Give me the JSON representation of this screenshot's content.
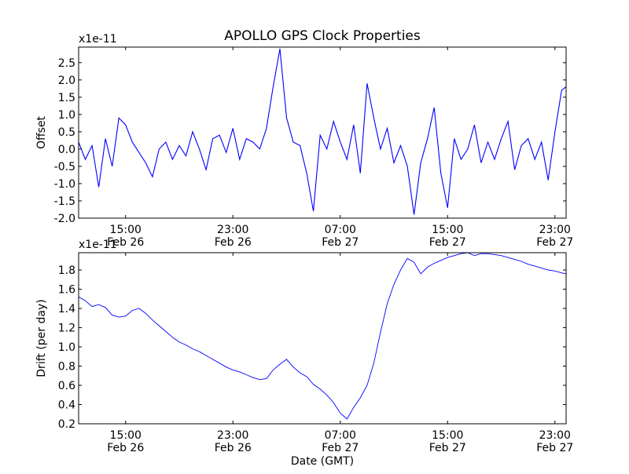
{
  "figure": {
    "title": "APOLLO GPS Clock Properties",
    "xlabel": "Date (GMT)"
  },
  "chart_data": [
    {
      "type": "line",
      "title": "APOLLO GPS Clock Properties",
      "ylabel": "Offset",
      "scale_note": "x1e-11",
      "xlim": [
        "2012-02-26T11:30:00",
        "2012-02-27T23:50:00"
      ],
      "ylim": [
        -2.0,
        2.95
      ],
      "yticks": [
        "-2.0",
        "-1.5",
        "-1.0",
        "-0.5",
        "0.0",
        "0.5",
        "1.0",
        "1.5",
        "2.0",
        "2.5"
      ],
      "ytick_values": [
        -2.0,
        -1.5,
        -1.0,
        -0.5,
        0.0,
        0.5,
        1.0,
        1.5,
        2.0,
        2.5
      ],
      "xticks": [
        {
          "time": "2012-02-26T15:00:00",
          "line1": "15:00",
          "line2": "Feb 26"
        },
        {
          "time": "2012-02-26T23:00:00",
          "line1": "23:00",
          "line2": "Feb 26"
        },
        {
          "time": "2012-02-27T07:00:00",
          "line1": "07:00",
          "line2": "Feb 27"
        },
        {
          "time": "2012-02-27T15:00:00",
          "line1": "15:00",
          "line2": "Feb 27"
        },
        {
          "time": "2012-02-27T23:00:00",
          "line1": "23:00",
          "line2": "Feb 27"
        }
      ],
      "color": "#0000ff",
      "grid": false,
      "series": [
        {
          "x": [
            "2012-02-26T11:30",
            "2012-02-26T12:00",
            "2012-02-26T12:30",
            "2012-02-26T13:00",
            "2012-02-26T13:30",
            "2012-02-26T14:00",
            "2012-02-26T14:30",
            "2012-02-26T15:00",
            "2012-02-26T15:30",
            "2012-02-26T16:00",
            "2012-02-26T16:30",
            "2012-02-26T17:00",
            "2012-02-26T17:30",
            "2012-02-26T18:00",
            "2012-02-26T18:30",
            "2012-02-26T19:00",
            "2012-02-26T19:30",
            "2012-02-26T20:00",
            "2012-02-26T20:30",
            "2012-02-26T21:00",
            "2012-02-26T21:30",
            "2012-02-26T22:00",
            "2012-02-26T22:30",
            "2012-02-26T23:00",
            "2012-02-26T23:30",
            "2012-02-27T00:00",
            "2012-02-27T00:30",
            "2012-02-27T01:00",
            "2012-02-27T01:30",
            "2012-02-27T02:00",
            "2012-02-27T02:30",
            "2012-02-27T03:00",
            "2012-02-27T03:30",
            "2012-02-27T04:00",
            "2012-02-27T04:30",
            "2012-02-27T05:00",
            "2012-02-27T05:30",
            "2012-02-27T06:00",
            "2012-02-27T06:30",
            "2012-02-27T07:00",
            "2012-02-27T07:30",
            "2012-02-27T08:00",
            "2012-02-27T08:30",
            "2012-02-27T09:00",
            "2012-02-27T09:30",
            "2012-02-27T10:00",
            "2012-02-27T10:30",
            "2012-02-27T11:00",
            "2012-02-27T11:30",
            "2012-02-27T12:00",
            "2012-02-27T12:30",
            "2012-02-27T13:00",
            "2012-02-27T13:30",
            "2012-02-27T14:00",
            "2012-02-27T14:30",
            "2012-02-27T15:00",
            "2012-02-27T15:30",
            "2012-02-27T16:00",
            "2012-02-27T16:30",
            "2012-02-27T17:00",
            "2012-02-27T17:30",
            "2012-02-27T18:00",
            "2012-02-27T18:30",
            "2012-02-27T19:00",
            "2012-02-27T19:30",
            "2012-02-27T20:00",
            "2012-02-27T20:30",
            "2012-02-27T21:00",
            "2012-02-27T21:30",
            "2012-02-27T22:00",
            "2012-02-27T22:30",
            "2012-02-27T23:00",
            "2012-02-27T23:30",
            "2012-02-27T23:50"
          ],
          "y": [
            0.2,
            -0.3,
            0.1,
            -1.1,
            0.3,
            -0.5,
            0.9,
            0.7,
            0.2,
            -0.1,
            -0.4,
            -0.8,
            0.0,
            0.2,
            -0.3,
            0.1,
            -0.2,
            0.5,
            0.0,
            -0.6,
            0.3,
            0.4,
            -0.1,
            0.6,
            -0.3,
            0.3,
            0.2,
            0.0,
            0.6,
            1.8,
            2.9,
            0.9,
            0.2,
            0.1,
            -0.7,
            -1.8,
            0.4,
            0.0,
            0.8,
            0.2,
            -0.3,
            0.7,
            -0.7,
            1.9,
            0.9,
            0.0,
            0.6,
            -0.4,
            0.1,
            -0.5,
            -1.9,
            -0.4,
            0.3,
            1.2,
            -0.7,
            -1.7,
            0.3,
            -0.3,
            0.0,
            0.7,
            -0.4,
            0.2,
            -0.3,
            0.3,
            0.8,
            -0.6,
            0.1,
            0.3,
            -0.3,
            0.2,
            -0.9,
            0.5,
            1.7,
            1.8
          ]
        }
      ]
    },
    {
      "type": "line",
      "ylabel": "Drift (per day)",
      "xlabel": "Date (GMT)",
      "scale_note": "x1e-11",
      "xlim": [
        "2012-02-26T11:30:00",
        "2012-02-27T23:50:00"
      ],
      "ylim": [
        0.2,
        1.98
      ],
      "yticks": [
        "0.2",
        "0.4",
        "0.6",
        "0.8",
        "1.0",
        "1.2",
        "1.4",
        "1.6",
        "1.8"
      ],
      "ytick_values": [
        0.2,
        0.4,
        0.6,
        0.8,
        1.0,
        1.2,
        1.4,
        1.6,
        1.8
      ],
      "xticks": [
        {
          "time": "2012-02-26T15:00:00",
          "line1": "15:00",
          "line2": "Feb 26"
        },
        {
          "time": "2012-02-26T23:00:00",
          "line1": "23:00",
          "line2": "Feb 26"
        },
        {
          "time": "2012-02-27T07:00:00",
          "line1": "07:00",
          "line2": "Feb 27"
        },
        {
          "time": "2012-02-27T15:00:00",
          "line1": "15:00",
          "line2": "Feb 27"
        },
        {
          "time": "2012-02-27T23:00:00",
          "line1": "23:00",
          "line2": "Feb 27"
        }
      ],
      "color": "#0000ff",
      "grid": false,
      "series": [
        {
          "x": [
            "2012-02-26T11:30",
            "2012-02-26T12:00",
            "2012-02-26T12:30",
            "2012-02-26T13:00",
            "2012-02-26T13:30",
            "2012-02-26T14:00",
            "2012-02-26T14:30",
            "2012-02-26T15:00",
            "2012-02-26T15:30",
            "2012-02-26T16:00",
            "2012-02-26T16:30",
            "2012-02-26T17:00",
            "2012-02-26T17:30",
            "2012-02-26T18:00",
            "2012-02-26T18:30",
            "2012-02-26T19:00",
            "2012-02-26T19:30",
            "2012-02-26T20:00",
            "2012-02-26T20:30",
            "2012-02-26T21:00",
            "2012-02-26T21:30",
            "2012-02-26T22:00",
            "2012-02-26T22:30",
            "2012-02-26T23:00",
            "2012-02-26T23:30",
            "2012-02-27T00:00",
            "2012-02-27T00:30",
            "2012-02-27T01:00",
            "2012-02-27T01:30",
            "2012-02-27T02:00",
            "2012-02-27T02:30",
            "2012-02-27T03:00",
            "2012-02-27T03:30",
            "2012-02-27T04:00",
            "2012-02-27T04:30",
            "2012-02-27T05:00",
            "2012-02-27T05:30",
            "2012-02-27T06:00",
            "2012-02-27T06:30",
            "2012-02-27T07:00",
            "2012-02-27T07:30",
            "2012-02-27T08:00",
            "2012-02-27T08:30",
            "2012-02-27T09:00",
            "2012-02-27T09:30",
            "2012-02-27T10:00",
            "2012-02-27T10:30",
            "2012-02-27T11:00",
            "2012-02-27T11:30",
            "2012-02-27T12:00",
            "2012-02-27T12:30",
            "2012-02-27T13:00",
            "2012-02-27T13:30",
            "2012-02-27T14:00",
            "2012-02-27T14:30",
            "2012-02-27T15:00",
            "2012-02-27T15:30",
            "2012-02-27T16:00",
            "2012-02-27T16:30",
            "2012-02-27T17:00",
            "2012-02-27T17:30",
            "2012-02-27T18:00",
            "2012-02-27T18:30",
            "2012-02-27T19:00",
            "2012-02-27T19:30",
            "2012-02-27T20:00",
            "2012-02-27T20:30",
            "2012-02-27T21:00",
            "2012-02-27T21:30",
            "2012-02-27T22:00",
            "2012-02-27T22:30",
            "2012-02-27T23:00",
            "2012-02-27T23:30",
            "2012-02-27T23:50"
          ],
          "y": [
            1.52,
            1.48,
            1.42,
            1.44,
            1.41,
            1.33,
            1.31,
            1.32,
            1.38,
            1.4,
            1.35,
            1.28,
            1.22,
            1.16,
            1.1,
            1.05,
            1.02,
            0.98,
            0.95,
            0.91,
            0.87,
            0.83,
            0.79,
            0.76,
            0.74,
            0.71,
            0.68,
            0.66,
            0.67,
            0.76,
            0.82,
            0.87,
            0.79,
            0.73,
            0.69,
            0.61,
            0.56,
            0.5,
            0.42,
            0.31,
            0.25,
            0.37,
            0.47,
            0.6,
            0.83,
            1.15,
            1.45,
            1.65,
            1.8,
            1.92,
            1.88,
            1.76,
            1.83,
            1.87,
            1.9,
            1.93,
            1.95,
            1.97,
            1.98,
            1.95,
            1.97,
            1.97,
            1.96,
            1.95,
            1.93,
            1.91,
            1.89,
            1.86,
            1.84,
            1.82,
            1.8,
            1.79,
            1.77,
            1.76
          ]
        }
      ]
    }
  ]
}
